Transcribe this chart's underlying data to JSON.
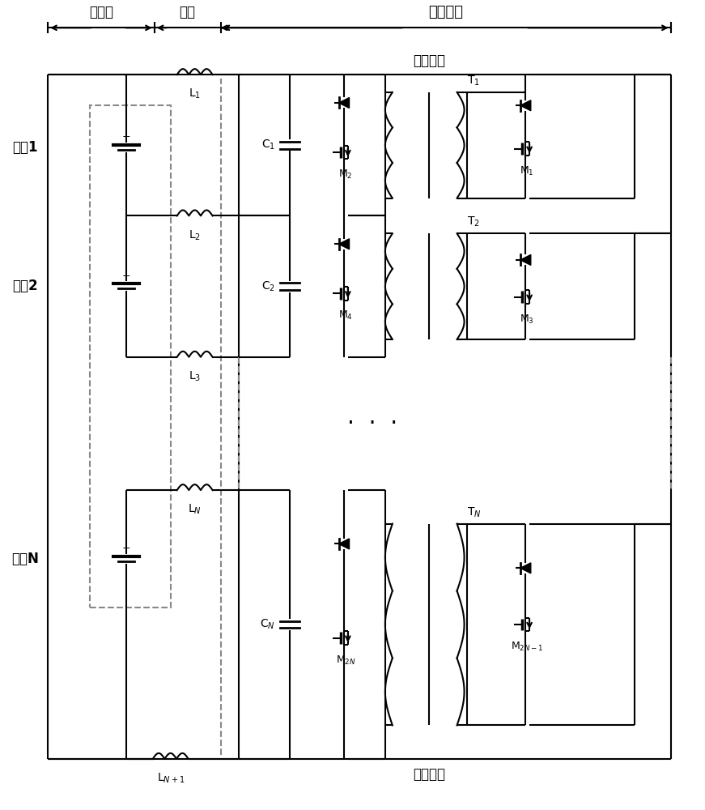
{
  "fig_width": 8.71,
  "fig_height": 10.0,
  "bg_color": "#ffffff",
  "line_color": "#000000",
  "labels": {
    "battery_group": "电池组",
    "wire": "导线",
    "balance_circuit": "均衡电路",
    "battery_pos": "电池组正",
    "battery_neg": "电池组负",
    "battery1": "电池1",
    "battery2": "电池2",
    "batteryN": "电池N",
    "L1": "L$_1$",
    "L2": "L$_2$",
    "L3": "L$_3$",
    "LN": "L$_N$",
    "LN1": "L$_{N+1}$",
    "C1": "C$_1$",
    "C2": "C$_2$",
    "CN": "C$_N$",
    "T1": "T$_1$",
    "T2": "T$_2$",
    "TN": "T$_N$",
    "M1": "M$_1$",
    "M2": "M$_2$",
    "M3": "M$_3$",
    "M4": "M$_4$",
    "M2N": "M$_{2N}$",
    "M2N1": "M$_{2N-1}$"
  }
}
